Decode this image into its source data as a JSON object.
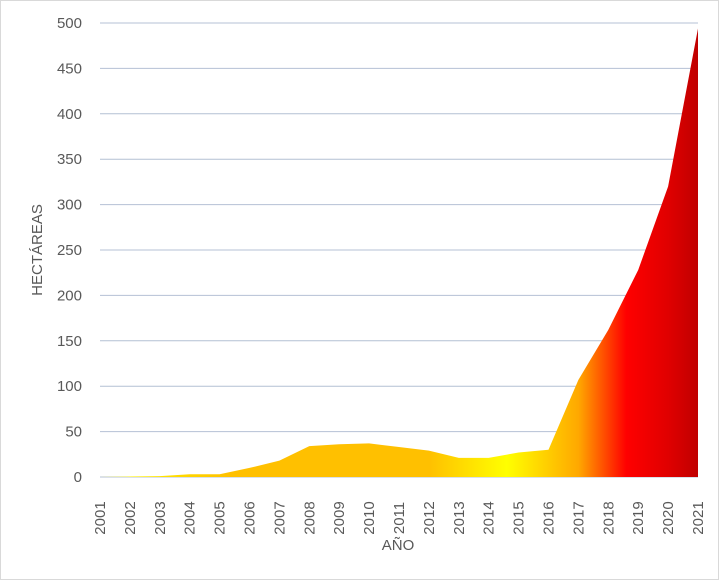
{
  "chart_data": {
    "type": "area",
    "x": [
      "2001",
      "2002",
      "2003",
      "2004",
      "2005",
      "2006",
      "2007",
      "2008",
      "2009",
      "2010",
      "2011",
      "2012",
      "2013",
      "2014",
      "2015",
      "2016",
      "2017",
      "2018",
      "2019",
      "2020",
      "2021"
    ],
    "values": [
      0,
      0.5,
      1,
      3,
      3,
      10,
      18,
      34,
      36,
      37,
      33,
      29,
      21,
      21,
      27,
      30,
      107,
      162,
      228,
      320,
      494
    ],
    "xlabel": "AÑO",
    "ylabel": "HECTÁREAS",
    "ylim": [
      0,
      500
    ],
    "yticks": [
      "0",
      "50",
      "100",
      "150",
      "200",
      "250",
      "300",
      "350",
      "400",
      "450",
      "500"
    ],
    "grid": true,
    "legend": "none",
    "colors": {
      "fill_gradient": [
        "#ffff00",
        "#ffc000",
        "#ffc000",
        "#ffc000",
        "#ffff00",
        "#ffa800",
        "#ff0000",
        "#c00000"
      ],
      "grid": "#b4c0d4",
      "text": "#595959"
    }
  }
}
